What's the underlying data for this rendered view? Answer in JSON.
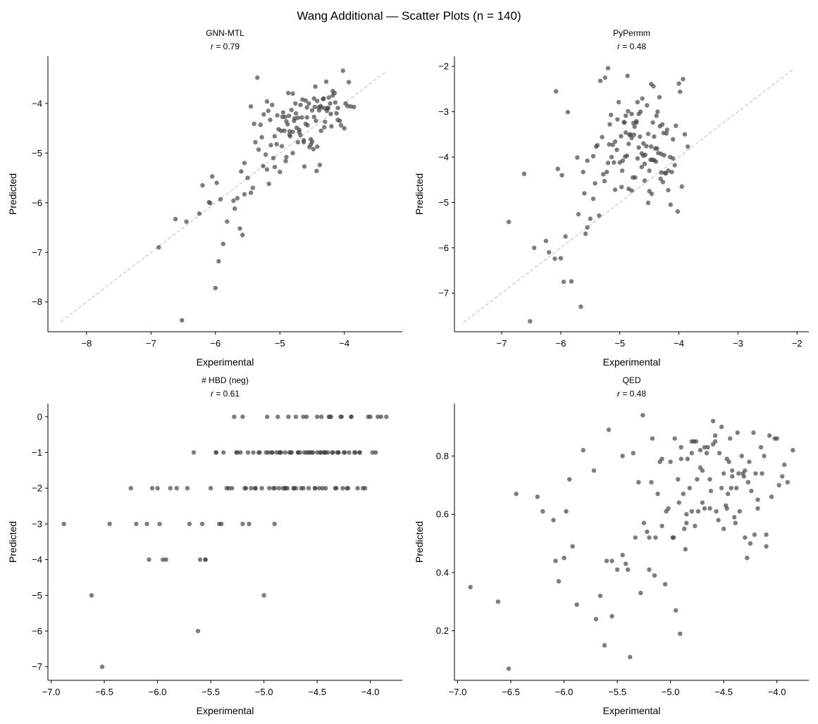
{
  "figure": {
    "title": "Wang Additional — Scatter Plots  (n = 140)",
    "point_color": "#404040",
    "diagonal_color": "#bdbdbd"
  },
  "chart_data": [
    {
      "type": "scatter",
      "title": "GNN-MTL",
      "subtitle_label": "r",
      "subtitle_value": " = 0.79",
      "xlabel": "Experimental",
      "ylabel": "Predicted",
      "xlim": [
        -8.6,
        -3.1
      ],
      "ylim": [
        -8.6,
        -3.05
      ],
      "xticks": [
        -8,
        -7,
        -6,
        -5,
        -4
      ],
      "yticks": [
        -8,
        -7,
        -6,
        -5,
        -4
      ],
      "tick_labels_x": [
        "−8",
        "−7",
        "−6",
        "−5",
        "−4"
      ],
      "tick_labels_y": [
        "−8",
        "−7",
        "−6",
        "−5",
        "−4"
      ],
      "diagonal": [
        -8.4,
        -3.35
      ],
      "x": [
        -6.52,
        -6.88,
        -6.0,
        -5.95,
        -5.88,
        -5.62,
        -5.58,
        -6.62,
        -6.45,
        -6.25,
        -6.2,
        -6.1,
        -6.05,
        -6.08,
        -5.98,
        -5.82,
        -5.92,
        -5.72,
        -5.7,
        -5.66,
        -5.55,
        -5.5,
        -5.6,
        -5.45,
        -5.42,
        -5.38,
        -5.3,
        -5.26,
        -5.2,
        -5.17,
        -5.14,
        -5.1,
        -5.08,
        -5.04,
        -5.0,
        -4.98,
        -4.95,
        -4.93,
        -4.9,
        -4.88,
        -4.86,
        -4.85,
        -4.82,
        -4.8,
        -4.78,
        -4.75,
        -4.72,
        -4.7,
        -4.68,
        -4.65,
        -4.62,
        -4.6,
        -4.58,
        -4.55,
        -4.52,
        -4.5,
        -4.48,
        -4.46,
        -4.44,
        -4.42,
        -4.4,
        -4.38,
        -4.35,
        -4.32,
        -4.3,
        -4.28,
        -4.25,
        -4.22,
        -4.2,
        -4.18,
        -4.15,
        -4.12,
        -4.1,
        -4.05,
        -4.0,
        -3.95,
        -3.9,
        -3.85,
        -5.35,
        -5.25,
        -5.2,
        -5.12,
        -5.05,
        -5.02,
        -4.97,
        -4.92,
        -4.9,
        -4.87,
        -4.84,
        -4.8,
        -4.77,
        -4.74,
        -4.7,
        -4.66,
        -4.63,
        -4.6,
        -4.57,
        -4.54,
        -4.5,
        -4.47,
        -4.45,
        -4.42,
        -4.39,
        -4.36,
        -4.33,
        -4.3,
        -4.27,
        -4.24,
        -4.21,
        -4.18,
        -4.14,
        -4.1,
        -4.07,
        -4.02,
        -3.98,
        -3.93,
        -5.55,
        -5.45,
        -5.4,
        -5.33,
        -5.28,
        -5.22,
        -5.18,
        -5.15,
        -5.08,
        -4.96,
        -4.91,
        -4.85,
        -4.8,
        -4.76,
        -4.72,
        -4.68,
        -4.63,
        -4.58,
        -4.52,
        -4.47,
        -4.43,
        -4.37,
        -4.31,
        -4.26
      ],
      "y": [
        -8.37,
        -6.9,
        -7.72,
        -7.18,
        -6.83,
        -6.52,
        -6.65,
        -6.33,
        -6.38,
        -6.22,
        -5.65,
        -5.99,
        -5.47,
        -6.01,
        -5.6,
        -6.38,
        -5.93,
        -5.96,
        -6.12,
        -5.91,
        -5.83,
        -5.5,
        -5.37,
        -5.8,
        -5.7,
        -4.78,
        -4.43,
        -5.26,
        -5.33,
        -5.62,
        -4.84,
        -5.1,
        -4.66,
        -4.24,
        -5.38,
        -4.55,
        -4.18,
        -4.55,
        -5.08,
        -4.42,
        -4.25,
        -4.63,
        -4.13,
        -5.0,
        -4.35,
        -4.2,
        -4.78,
        -4.53,
        -4.03,
        -3.92,
        -5.27,
        -4.41,
        -4.28,
        -4.0,
        -4.72,
        -4.14,
        -4.92,
        -4.07,
        -4.35,
        -3.95,
        -4.08,
        -5.24,
        -4.08,
        -3.9,
        -4.37,
        -3.56,
        -4.09,
        -4.0,
        -4.46,
        -3.75,
        -3.79,
        -4.2,
        -4.09,
        -4.44,
        -4.5,
        -4.05,
        -4.06,
        -4.07,
        -3.48,
        -4.22,
        -3.96,
        -4.03,
        -4.82,
        -4.52,
        -4.86,
        -4.27,
        -4.36,
        -3.79,
        -4.66,
        -3.8,
        -4.3,
        -4.49,
        -4.58,
        -4.28,
        -4.74,
        -3.94,
        -4.44,
        -4.88,
        -4.77,
        -3.9,
        -3.66,
        -4.87,
        -4.14,
        -4.55,
        -3.91,
        -4.1,
        -4.15,
        -3.88,
        -4.21,
        -3.84,
        -3.98,
        -4.33,
        -4.35,
        -3.34,
        -4.0,
        -3.57,
        -5.2,
        -4.06,
        -4.41,
        -4.93,
        -4.68,
        -5.03,
        -4.15,
        -4.33,
        -5.28,
        -4.27,
        -5.16,
        -4.56,
        -4.57,
        -4.0,
        -4.29,
        -4.64,
        -4.78,
        -4.08,
        -4.83,
        -4.27,
        -5.36,
        -4.05,
        -4.48,
        -4.1
      ]
    },
    {
      "type": "scatter",
      "title": "PyPermm",
      "subtitle_label": "r",
      "subtitle_value": " = 0.48",
      "xlabel": "Experimental",
      "ylabel": "Predicted",
      "xlim": [
        -7.8,
        -1.8
      ],
      "ylim": [
        -7.85,
        -1.78
      ],
      "xticks": [
        -7,
        -6,
        -5,
        -4,
        -3,
        -2
      ],
      "yticks": [
        -7,
        -6,
        -5,
        -4,
        -3,
        -2
      ],
      "tick_labels_x": [
        "−7",
        "−6",
        "−5",
        "−4",
        "−3",
        "−2"
      ],
      "tick_labels_y": [
        "−7",
        "−6",
        "−5",
        "−4",
        "−3",
        "−2"
      ],
      "diagonal": [
        -7.65,
        -2.05
      ],
      "x": [
        -6.52,
        -6.88,
        -6.0,
        -5.95,
        -5.88,
        -5.62,
        -5.58,
        -6.62,
        -6.45,
        -6.25,
        -6.2,
        -6.1,
        -6.05,
        -6.08,
        -5.98,
        -5.82,
        -5.92,
        -5.72,
        -5.7,
        -5.66,
        -5.55,
        -5.5,
        -5.6,
        -5.45,
        -5.42,
        -5.38,
        -5.3,
        -5.26,
        -5.2,
        -5.17,
        -5.14,
        -5.1,
        -5.08,
        -5.04,
        -5.0,
        -4.98,
        -4.95,
        -4.93,
        -4.9,
        -4.88,
        -4.86,
        -4.85,
        -4.82,
        -4.8,
        -4.78,
        -4.75,
        -4.72,
        -4.7,
        -4.68,
        -4.65,
        -4.62,
        -4.6,
        -4.58,
        -4.55,
        -4.52,
        -4.5,
        -4.48,
        -4.46,
        -4.44,
        -4.42,
        -4.4,
        -4.38,
        -4.35,
        -4.32,
        -4.3,
        -4.28,
        -4.25,
        -4.22,
        -4.2,
        -4.18,
        -4.15,
        -4.12,
        -4.1,
        -4.05,
        -4.0,
        -3.95,
        -3.9,
        -3.85,
        -5.35,
        -5.25,
        -5.2,
        -5.12,
        -5.05,
        -5.02,
        -4.97,
        -4.92,
        -4.9,
        -4.87,
        -4.84,
        -4.8,
        -4.77,
        -4.74,
        -4.7,
        -4.66,
        -4.63,
        -4.6,
        -4.57,
        -4.54,
        -4.5,
        -4.47,
        -4.45,
        -4.42,
        -4.39,
        -4.36,
        -4.33,
        -4.3,
        -4.27,
        -4.24,
        -4.21,
        -4.18,
        -4.14,
        -4.1,
        -4.07,
        -4.02,
        -3.98,
        -3.93,
        -5.55,
        -5.45,
        -5.4,
        -5.33,
        -5.28,
        -5.22,
        -5.18,
        -5.15,
        -5.08,
        -4.96,
        -4.91,
        -4.85,
        -4.8,
        -4.76,
        -4.72,
        -4.68,
        -4.63,
        -4.58,
        -4.52,
        -4.47,
        -4.43,
        -4.37,
        -4.31,
        -4.26
      ],
      "y": [
        -7.62,
        -5.43,
        -6.23,
        -6.75,
        -3.01,
        -4.33,
        -5.69,
        -4.37,
        -6.0,
        -5.85,
        -6.1,
        -6.24,
        -4.26,
        -2.55,
        -4.4,
        -6.74,
        -5.75,
        -4.01,
        -5.26,
        -7.3,
        -4.08,
        -5.36,
        -4.8,
        -3.98,
        -4.58,
        -3.74,
        -3.56,
        -4.53,
        -2.04,
        -3.28,
        -4.0,
        -4.12,
        -4.72,
        -3.17,
        -4.12,
        -3.54,
        -4.08,
        -3.23,
        -3.46,
        -3.97,
        -2.99,
        -4.7,
        -3.5,
        -3.58,
        -4.45,
        -3.33,
        -3.24,
        -2.79,
        -3.79,
        -3.0,
        -2.71,
        -3.7,
        -4.15,
        -3.76,
        -3.49,
        -4.3,
        -4.06,
        -4.81,
        -3.24,
        -3.55,
        -3.81,
        -3.09,
        -3.91,
        -3.32,
        -4.34,
        -3.28,
        -3.96,
        -4.36,
        -3.4,
        -4.3,
        -4.0,
        -4.33,
        -3.61,
        -3.31,
        -2.38,
        -4.65,
        -3.5,
        -3.77,
        -5.29,
        -2.25,
        -4.13,
        -3.73,
        -3.84,
        -2.79,
        -4.66,
        -3.24,
        -3.09,
        -2.21,
        -3.51,
        -3.05,
        -3.25,
        -4.45,
        -4.03,
        -3.55,
        -4.22,
        -3.97,
        -3.95,
        -2.86,
        -4.75,
        -2.39,
        -4.06,
        -4.07,
        -4.1,
        -3.0,
        -2.68,
        -3.93,
        -4.55,
        -4.35,
        -3.48,
        -4.73,
        -5.05,
        -4.03,
        -4.18,
        -5.2,
        -2.56,
        -2.28,
        -5.55,
        -4.92,
        -3.77,
        -2.32,
        -4.38,
        -4.33,
        -3.72,
        -3.07,
        -3.66,
        -4.3,
        -3.99,
        -3.71,
        -4.74,
        -3.51,
        -3.21,
        -3.05,
        -3.92,
        -4.52,
        -5.01,
        -3.77,
        -2.44,
        -3.81,
        -4.48,
        -3.47
      ]
    },
    {
      "type": "scatter",
      "title": "# HBD (neg)",
      "subtitle_label": "r",
      "subtitle_value": " = 0.61",
      "xlabel": "Experimental",
      "ylabel": "Predicted",
      "xlim": [
        -7.03,
        -3.7
      ],
      "ylim": [
        -7.38,
        0.37
      ],
      "xticks": [
        -7.0,
        -6.5,
        -6.0,
        -5.5,
        -5.0,
        -4.5,
        -4.0
      ],
      "yticks": [
        -7,
        -6,
        -5,
        -4,
        -3,
        -2,
        -1,
        0
      ],
      "tick_labels_x": [
        "−7.0",
        "−6.5",
        "−6.0",
        "−5.5",
        "−5.0",
        "−4.5",
        "−4.0"
      ],
      "tick_labels_y": [
        "−7",
        "−6",
        "−5",
        "−4",
        "−3",
        "−2",
        "−1",
        "0"
      ],
      "diagonal": null,
      "x": [
        -6.52,
        -6.88,
        -6.0,
        -5.95,
        -5.88,
        -5.62,
        -5.58,
        -6.62,
        -6.45,
        -6.25,
        -6.2,
        -6.1,
        -6.05,
        -6.08,
        -5.98,
        -5.82,
        -5.92,
        -5.72,
        -5.7,
        -5.66,
        -5.55,
        -5.5,
        -5.6,
        -5.45,
        -5.42,
        -5.38,
        -5.3,
        -5.26,
        -5.2,
        -5.17,
        -5.14,
        -5.1,
        -5.08,
        -5.04,
        -5.0,
        -4.98,
        -4.95,
        -4.93,
        -4.9,
        -4.88,
        -4.86,
        -4.85,
        -4.82,
        -4.8,
        -4.78,
        -4.75,
        -4.72,
        -4.7,
        -4.68,
        -4.65,
        -4.62,
        -4.6,
        -4.58,
        -4.55,
        -4.52,
        -4.5,
        -4.48,
        -4.46,
        -4.44,
        -4.42,
        -4.4,
        -4.38,
        -4.35,
        -4.32,
        -4.3,
        -4.28,
        -4.25,
        -4.22,
        -4.2,
        -4.18,
        -4.15,
        -4.12,
        -4.1,
        -4.05,
        -4.0,
        -3.95,
        -3.9,
        -3.85,
        -5.35,
        -5.25,
        -5.2,
        -5.12,
        -5.05,
        -5.02,
        -4.97,
        -4.92,
        -4.9,
        -4.87,
        -4.84,
        -4.8,
        -4.77,
        -4.74,
        -4.7,
        -4.66,
        -4.63,
        -4.6,
        -4.57,
        -4.54,
        -4.5,
        -4.47,
        -4.45,
        -4.42,
        -4.39,
        -4.36,
        -4.33,
        -4.3,
        -4.27,
        -4.24,
        -4.21,
        -4.18,
        -4.14,
        -4.1,
        -4.07,
        -4.02,
        -3.98,
        -3.93,
        -5.55,
        -5.45,
        -5.4,
        -5.33,
        -5.28,
        -5.22,
        -5.18,
        -5.15,
        -5.08,
        -4.96,
        -4.91,
        -4.85,
        -4.8,
        -4.76,
        -4.72,
        -4.68,
        -4.63,
        -4.58,
        -4.52,
        -4.47,
        -4.43,
        -4.37,
        -4.31,
        -4.26
      ],
      "y": [
        -7,
        -3,
        -2,
        -4,
        -2,
        -6,
        -3,
        -5,
        -3,
        -2,
        -3,
        -3,
        -2,
        -4,
        -3,
        -2,
        -4,
        -2,
        -3,
        -1,
        -4,
        -2,
        -4,
        -1,
        -3,
        -1,
        -2,
        -1,
        -3,
        -2,
        -3,
        -1,
        -2,
        -1,
        -5,
        -1,
        -2,
        -1,
        -3,
        -1,
        -2,
        -1,
        -2,
        -1,
        -2,
        -1,
        -2,
        0,
        -1,
        -2,
        -1,
        -1,
        -2,
        -1,
        -2,
        -1,
        -2,
        0,
        -1,
        -2,
        -1,
        0,
        -1,
        -2,
        -1,
        0,
        -1,
        -2,
        -1,
        0,
        -1,
        -2,
        -1,
        -2,
        0,
        -1,
        0,
        0,
        -2,
        -1,
        0,
        -2,
        -1,
        -2,
        0,
        -1,
        -2,
        0,
        -1,
        -2,
        0,
        -1,
        -2,
        -1,
        -2,
        0,
        -1,
        -1,
        0,
        -1,
        -2,
        -1,
        0,
        -1,
        -2,
        -1,
        0,
        -1,
        -2,
        0,
        -1,
        -1,
        -2,
        0,
        -1,
        0,
        -4,
        -1,
        -3,
        -2,
        0,
        -1,
        -2,
        -1,
        -2,
        -1,
        -2,
        -1,
        -2,
        -1,
        -2,
        -1,
        0,
        -1,
        -2,
        -1,
        -1,
        0,
        -1,
        -2
      ]
    },
    {
      "type": "scatter",
      "title": "QED",
      "subtitle_label": "r",
      "subtitle_value": " = 0.48",
      "xlabel": "Experimental",
      "ylabel": "Predicted",
      "xlim": [
        -7.03,
        -3.7
      ],
      "ylim": [
        0.03,
        0.98
      ],
      "xticks": [
        -7.0,
        -6.5,
        -6.0,
        -5.5,
        -5.0,
        -4.5,
        -4.0
      ],
      "yticks": [
        0.2,
        0.4,
        0.6,
        0.8
      ],
      "tick_labels_x": [
        "−7.0",
        "−6.5",
        "−6.0",
        "−5.5",
        "−5.0",
        "−4.5",
        "−4.0"
      ],
      "tick_labels_y": [
        "0.2",
        "0.4",
        "0.6",
        "0.8"
      ],
      "diagonal": null,
      "x": [
        -6.52,
        -6.88,
        -6.0,
        -5.95,
        -5.88,
        -5.62,
        -5.58,
        -6.62,
        -6.45,
        -6.25,
        -6.2,
        -6.1,
        -6.05,
        -6.08,
        -5.98,
        -5.82,
        -5.92,
        -5.72,
        -5.7,
        -5.66,
        -5.55,
        -5.5,
        -5.6,
        -5.45,
        -5.42,
        -5.38,
        -5.3,
        -5.26,
        -5.2,
        -5.17,
        -5.14,
        -5.1,
        -5.08,
        -5.04,
        -5.0,
        -4.98,
        -4.95,
        -4.93,
        -4.9,
        -4.88,
        -4.86,
        -4.85,
        -4.82,
        -4.8,
        -4.78,
        -4.75,
        -4.72,
        -4.7,
        -4.68,
        -4.65,
        -4.62,
        -4.6,
        -4.58,
        -4.55,
        -4.52,
        -4.5,
        -4.48,
        -4.46,
        -4.44,
        -4.42,
        -4.4,
        -4.38,
        -4.35,
        -4.32,
        -4.3,
        -4.28,
        -4.25,
        -4.22,
        -4.2,
        -4.18,
        -4.15,
        -4.12,
        -4.1,
        -4.05,
        -4.0,
        -3.95,
        -3.9,
        -3.85,
        -5.35,
        -5.25,
        -5.2,
        -5.12,
        -5.05,
        -5.02,
        -4.97,
        -4.92,
        -4.9,
        -4.87,
        -4.84,
        -4.8,
        -4.77,
        -4.74,
        -4.7,
        -4.66,
        -4.63,
        -4.6,
        -4.57,
        -4.54,
        -4.5,
        -4.47,
        -4.45,
        -4.42,
        -4.39,
        -4.36,
        -4.33,
        -4.3,
        -4.27,
        -4.24,
        -4.21,
        -4.18,
        -4.14,
        -4.1,
        -4.07,
        -4.02,
        -3.98,
        -3.93,
        -5.55,
        -5.45,
        -5.4,
        -5.33,
        -5.28,
        -5.22,
        -5.18,
        -5.15,
        -5.08,
        -4.96,
        -4.91,
        -4.85,
        -4.8,
        -4.76,
        -4.72,
        -4.68,
        -4.63,
        -4.58,
        -4.52,
        -4.47,
        -4.43,
        -4.37,
        -4.31,
        -4.26
      ],
      "y": [
        0.07,
        0.35,
        0.45,
        0.72,
        0.29,
        0.15,
        0.89,
        0.3,
        0.67,
        0.66,
        0.61,
        0.58,
        0.37,
        0.44,
        0.61,
        0.82,
        0.49,
        0.75,
        0.24,
        0.32,
        0.25,
        0.41,
        0.44,
        0.46,
        0.43,
        0.11,
        0.71,
        0.94,
        0.52,
        0.86,
        0.52,
        0.78,
        0.79,
        0.61,
        0.78,
        0.52,
        0.27,
        0.72,
        0.79,
        0.67,
        0.48,
        0.57,
        0.69,
        0.61,
        0.85,
        0.72,
        0.82,
        0.75,
        0.62,
        0.83,
        0.68,
        0.84,
        0.87,
        0.58,
        0.69,
        0.55,
        0.63,
        0.67,
        0.86,
        0.75,
        0.59,
        0.69,
        0.61,
        0.74,
        0.52,
        0.45,
        0.5,
        0.88,
        0.74,
        0.65,
        0.83,
        0.8,
        0.49,
        0.66,
        0.86,
        0.73,
        0.71,
        0.82,
        0.81,
        0.57,
        0.41,
        0.67,
        0.36,
        0.62,
        0.52,
        0.64,
        0.83,
        0.55,
        0.79,
        0.81,
        0.56,
        0.61,
        0.64,
        0.81,
        0.72,
        0.92,
        0.61,
        0.81,
        0.74,
        0.62,
        0.78,
        0.73,
        0.57,
        0.74,
        0.8,
        0.75,
        0.71,
        0.68,
        0.53,
        0.62,
        0.74,
        0.53,
        0.87,
        0.86,
        0.7,
        0.77,
        0.44,
        0.8,
        0.41,
        0.52,
        0.33,
        0.54,
        0.71,
        0.39,
        0.56,
        0.86,
        0.19,
        0.6,
        0.85,
        0.85,
        0.76,
        0.83,
        0.62,
        0.85,
        0.9,
        0.79,
        0.69,
        0.88,
        0.73,
        0.78
      ]
    }
  ]
}
